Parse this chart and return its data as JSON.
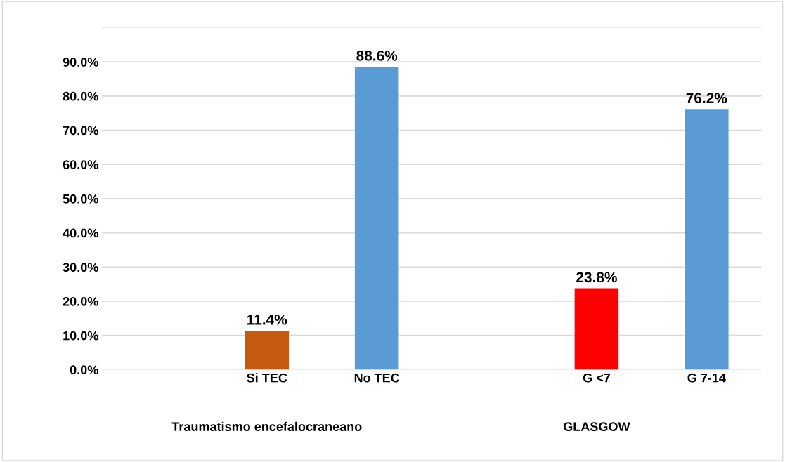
{
  "chart_data": {
    "type": "bar",
    "categories": [
      null,
      "Si TEC",
      "No TEC",
      null,
      "G <7",
      "G 7-14"
    ],
    "values": [
      null,
      11.4,
      88.6,
      null,
      23.8,
      76.2
    ],
    "colors": [
      "#5b9bd5",
      "#c55a11",
      "#5b9bd5",
      "#5b9bd5",
      "#ff0000",
      "#5b9bd5"
    ],
    "value_labels": [
      null,
      "11.4%",
      "88.6%",
      null,
      "23.8%",
      "76.2%"
    ],
    "ylim": [
      0,
      100
    ],
    "yticks": [
      {
        "value": 0,
        "label": "0.0%"
      },
      {
        "value": 10,
        "label": "10.0%"
      },
      {
        "value": 20,
        "label": "20.0%"
      },
      {
        "value": 30,
        "label": "30.0%"
      },
      {
        "value": 40,
        "label": "40.0%"
      },
      {
        "value": 50,
        "label": "50.0%"
      },
      {
        "value": 60,
        "label": "60.0%"
      },
      {
        "value": 70,
        "label": "70.0%"
      },
      {
        "value": 80,
        "label": "80.0%"
      },
      {
        "value": 90,
        "label": "90.0%"
      },
      {
        "value": 100,
        "label": null
      }
    ],
    "grid": "y",
    "annotations": [
      "Traumatismo encefalocraneano",
      "GLASGOW"
    ]
  }
}
